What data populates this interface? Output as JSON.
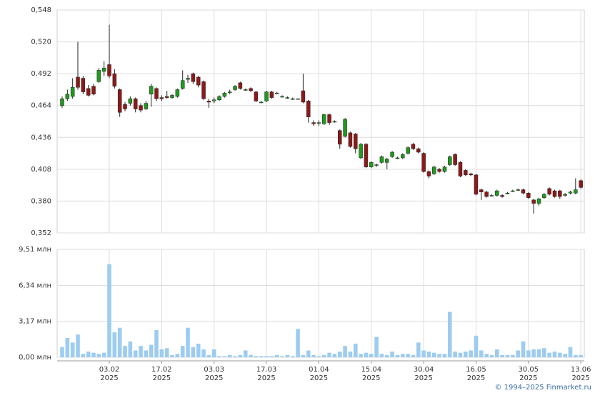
{
  "chart_data": [
    {
      "type": "candlestick",
      "up_color": "#1f9a1f",
      "down_color": "#8b1a1a",
      "wick_color": "#222222",
      "ylim": [
        0.352,
        0.548
      ],
      "yticks": [
        {
          "value": 0.352,
          "label": "0,352"
        },
        {
          "value": 0.38,
          "label": "0,380"
        },
        {
          "value": 0.408,
          "label": "0,408"
        },
        {
          "value": 0.436,
          "label": "0,436"
        },
        {
          "value": 0.464,
          "label": "0,464"
        },
        {
          "value": 0.492,
          "label": "0,492"
        },
        {
          "value": 0.52,
          "label": "0,520"
        },
        {
          "value": 0.548,
          "label": "0,548"
        }
      ],
      "grid": true,
      "open": [
        0.464,
        0.47,
        0.472,
        0.489,
        0.488,
        0.479,
        0.481,
        0.485,
        0.494,
        0.5,
        0.492,
        0.478,
        0.465,
        0.466,
        0.47,
        0.464,
        0.461,
        0.474,
        0.479,
        0.471,
        0.472,
        0.471,
        0.472,
        0.479,
        0.487,
        0.492,
        0.489,
        0.485,
        0.468,
        0.468,
        0.469,
        0.472,
        0.476,
        0.478,
        0.484,
        0.478,
        0.479,
        0.476,
        0.467,
        0.468,
        0.476,
        0.475,
        0.472,
        0.471,
        0.47,
        0.47,
        0.477,
        0.468,
        0.449,
        0.449,
        0.448,
        0.456,
        0.45,
        0.442,
        0.437,
        0.44,
        0.439,
        0.418,
        0.43,
        0.41,
        0.412,
        0.414,
        0.414,
        0.419,
        0.418,
        0.418,
        0.422,
        0.43,
        0.426,
        0.422,
        0.406,
        0.404,
        0.408,
        0.406,
        0.412,
        0.421,
        0.414,
        0.407,
        0.404,
        0.403,
        0.39,
        0.388,
        0.385,
        0.385,
        0.385,
        0.387,
        0.389,
        0.39,
        0.39,
        0.387,
        0.381,
        0.378,
        0.383,
        0.391,
        0.389,
        0.389,
        0.385,
        0.387,
        0.387,
        0.398
      ],
      "high": [
        0.472,
        0.478,
        0.488,
        0.52,
        0.49,
        0.482,
        0.483,
        0.497,
        0.503,
        0.535,
        0.496,
        0.479,
        0.467,
        0.472,
        0.471,
        0.466,
        0.468,
        0.483,
        0.48,
        0.473,
        0.477,
        0.474,
        0.479,
        0.495,
        0.491,
        0.493,
        0.49,
        0.486,
        0.47,
        0.471,
        0.473,
        0.476,
        0.478,
        0.482,
        0.485,
        0.479,
        0.48,
        0.477,
        0.468,
        0.477,
        0.477,
        0.476,
        0.473,
        0.472,
        0.471,
        0.47,
        0.492,
        0.469,
        0.451,
        0.451,
        0.457,
        0.457,
        0.451,
        0.443,
        0.453,
        0.441,
        0.44,
        0.431,
        0.431,
        0.415,
        0.413,
        0.42,
        0.418,
        0.424,
        0.419,
        0.422,
        0.428,
        0.431,
        0.427,
        0.423,
        0.407,
        0.411,
        0.409,
        0.411,
        0.42,
        0.422,
        0.415,
        0.408,
        0.405,
        0.404,
        0.391,
        0.389,
        0.386,
        0.39,
        0.386,
        0.388,
        0.39,
        0.391,
        0.391,
        0.388,
        0.382,
        0.383,
        0.387,
        0.392,
        0.39,
        0.39,
        0.387,
        0.389,
        0.4,
        0.399
      ],
      "low": [
        0.462,
        0.468,
        0.47,
        0.478,
        0.474,
        0.472,
        0.473,
        0.484,
        0.49,
        0.488,
        0.479,
        0.454,
        0.459,
        0.464,
        0.458,
        0.458,
        0.46,
        0.463,
        0.468,
        0.468,
        0.47,
        0.47,
        0.471,
        0.478,
        0.484,
        0.483,
        0.48,
        0.469,
        0.462,
        0.466,
        0.468,
        0.471,
        0.474,
        0.477,
        0.478,
        0.477,
        0.476,
        0.467,
        0.466,
        0.467,
        0.47,
        0.474,
        0.471,
        0.47,
        0.469,
        0.47,
        0.466,
        0.449,
        0.446,
        0.446,
        0.447,
        0.447,
        0.449,
        0.426,
        0.436,
        0.427,
        0.422,
        0.417,
        0.409,
        0.409,
        0.41,
        0.413,
        0.408,
        0.418,
        0.417,
        0.417,
        0.421,
        0.425,
        0.422,
        0.405,
        0.4,
        0.403,
        0.405,
        0.405,
        0.411,
        0.411,
        0.401,
        0.402,
        0.402,
        0.385,
        0.381,
        0.383,
        0.384,
        0.384,
        0.383,
        0.386,
        0.388,
        0.389,
        0.386,
        0.382,
        0.369,
        0.376,
        0.382,
        0.385,
        0.383,
        0.382,
        0.384,
        0.386,
        0.386,
        0.391
      ],
      "close": [
        0.47,
        0.474,
        0.48,
        0.48,
        0.476,
        0.473,
        0.474,
        0.495,
        0.497,
        0.49,
        0.481,
        0.458,
        0.461,
        0.47,
        0.461,
        0.46,
        0.466,
        0.481,
        0.47,
        0.47,
        0.471,
        0.473,
        0.478,
        0.486,
        0.488,
        0.485,
        0.482,
        0.47,
        0.467,
        0.469,
        0.472,
        0.475,
        0.476,
        0.481,
        0.479,
        0.478,
        0.477,
        0.468,
        0.467,
        0.476,
        0.471,
        0.475,
        0.472,
        0.471,
        0.47,
        0.47,
        0.467,
        0.454,
        0.448,
        0.449,
        0.456,
        0.449,
        0.45,
        0.43,
        0.452,
        0.428,
        0.426,
        0.43,
        0.41,
        0.414,
        0.412,
        0.419,
        0.417,
        0.423,
        0.418,
        0.421,
        0.427,
        0.426,
        0.423,
        0.406,
        0.402,
        0.41,
        0.406,
        0.41,
        0.419,
        0.412,
        0.402,
        0.403,
        0.403,
        0.386,
        0.388,
        0.384,
        0.385,
        0.389,
        0.384,
        0.387,
        0.389,
        0.39,
        0.387,
        0.383,
        0.378,
        0.382,
        0.386,
        0.386,
        0.384,
        0.384,
        0.386,
        0.388,
        0.39,
        0.392
      ]
    },
    {
      "type": "bar",
      "color": "#9dccf0",
      "ylim": [
        0,
        9.51
      ],
      "yticks": [
        {
          "value": 0,
          "label": "0,00 млн"
        },
        {
          "value": 3.17,
          "label": "3,17 млн"
        },
        {
          "value": 6.34,
          "label": "6,34 млн"
        },
        {
          "value": 9.51,
          "label": "9,51 млн"
        }
      ],
      "grid": true,
      "categories": [
        null,
        null,
        null,
        null,
        null,
        null,
        null,
        null,
        null,
        "03.02\n2025",
        null,
        null,
        null,
        null,
        null,
        null,
        null,
        null,
        null,
        "17.02\n2025",
        null,
        null,
        null,
        null,
        null,
        null,
        null,
        null,
        null,
        "03.03\n2025",
        null,
        null,
        null,
        null,
        null,
        null,
        null,
        null,
        null,
        "17.03\n2025",
        null,
        null,
        null,
        null,
        null,
        null,
        null,
        null,
        null,
        "01.04\n2025",
        null,
        null,
        null,
        null,
        null,
        null,
        null,
        null,
        null,
        "15.04\n2025",
        null,
        null,
        null,
        null,
        null,
        null,
        null,
        null,
        null,
        "30.04\n2025",
        null,
        null,
        null,
        null,
        null,
        null,
        null,
        null,
        null,
        "16.05\n2025",
        null,
        null,
        null,
        null,
        null,
        null,
        null,
        null,
        null,
        "30.05\n2025",
        null,
        null,
        null,
        null,
        null,
        null,
        null,
        null,
        null,
        "13.06\n2025"
      ],
      "values": [
        0.9,
        1.7,
        1.3,
        2.0,
        0.3,
        0.5,
        0.4,
        0.3,
        0.4,
        8.2,
        2.2,
        2.6,
        1.0,
        1.4,
        0.6,
        1.0,
        0.6,
        1.1,
        2.4,
        0.7,
        0.8,
        0.2,
        0.3,
        1.0,
        2.6,
        0.9,
        1.2,
        0.7,
        0.2,
        0.7,
        0.1,
        0.1,
        0.2,
        0.1,
        0.2,
        0.6,
        0.2,
        0.1,
        0.1,
        0.1,
        0.1,
        0.2,
        0.1,
        0.2,
        0.1,
        2.5,
        0.2,
        0.6,
        0.2,
        0.1,
        0.2,
        0.4,
        0.3,
        0.5,
        1.0,
        0.5,
        1.2,
        0.3,
        0.4,
        0.3,
        1.8,
        0.3,
        0.2,
        0.5,
        0.2,
        0.3,
        0.3,
        0.2,
        1.3,
        0.6,
        0.5,
        0.4,
        0.3,
        0.3,
        4.0,
        0.5,
        0.4,
        0.5,
        0.6,
        1.9,
        0.6,
        0.3,
        0.2,
        0.7,
        0.2,
        0.2,
        0.2,
        0.6,
        1.4,
        0.6,
        0.7,
        0.7,
        0.8,
        0.4,
        0.5,
        0.4,
        0.3,
        0.9,
        0.2,
        0.2
      ]
    }
  ],
  "footer": "© 1994–2025 Finmarket.ru"
}
